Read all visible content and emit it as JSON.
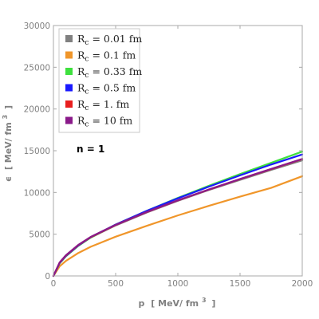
{
  "chart_data": {
    "type": "line",
    "xlabel_main": "p",
    "xlabel_unit": "[ MeV/ fm",
    "xlabel_exp": "3",
    "xlabel_close": "]",
    "ylabel_main": "ϵ",
    "ylabel_unit": "[ MeV/ fm",
    "ylabel_exp": "3",
    "ylabel_close": "]",
    "xlim": [
      0,
      2000
    ],
    "ylim": [
      0,
      30000
    ],
    "xticks": [
      0,
      500,
      1000,
      1500,
      2000
    ],
    "yticks": [
      0,
      5000,
      10000,
      15000,
      20000,
      25000,
      30000
    ],
    "grid": false,
    "legend_position": "top-left",
    "annotation": "n = 1",
    "series": [
      {
        "name": "R_c = 0.01 fm",
        "label_symbol": "R",
        "label_sub": "c",
        "label_rest": " = 0.01 fm",
        "color": "#808080",
        "x": [
          0,
          50,
          100,
          200,
          300,
          500,
          750,
          1000,
          1250,
          1500,
          1750,
          2000
        ],
        "y": [
          0,
          1550,
          2400,
          3650,
          4600,
          6050,
          7600,
          9000,
          10300,
          11500,
          12700,
          13850
        ]
      },
      {
        "name": "R_c = 0.1 fm",
        "label_symbol": "R",
        "label_sub": "c",
        "label_rest": " = 0.1 fm",
        "color": "#f0962a",
        "x": [
          0,
          50,
          100,
          200,
          300,
          500,
          750,
          1000,
          1250,
          1500,
          1750,
          2000
        ],
        "y": [
          0,
          1150,
          1800,
          2750,
          3500,
          4700,
          6000,
          7250,
          8400,
          9500,
          10550,
          11950
        ]
      },
      {
        "name": "R_c = 0.33 fm",
        "label_symbol": "R",
        "label_sub": "c",
        "label_rest": " = 0.33 fm",
        "color": "#3ee03e",
        "x": [
          0,
          50,
          100,
          200,
          300,
          500,
          750,
          1000,
          1250,
          1500,
          1750,
          2000
        ],
        "y": [
          0,
          1500,
          2350,
          3600,
          4600,
          6150,
          7800,
          9350,
          10800,
          12200,
          13550,
          14900
        ]
      },
      {
        "name": "R_c = 0.5 fm",
        "label_symbol": "R",
        "label_sub": "c",
        "label_rest": " = 0.5 fm",
        "color": "#1a1aff",
        "x": [
          0,
          50,
          100,
          200,
          300,
          500,
          750,
          1000,
          1250,
          1500,
          1750,
          2000
        ],
        "y": [
          0,
          1550,
          2400,
          3650,
          4650,
          6150,
          7800,
          9300,
          10700,
          12050,
          13350,
          14550
        ]
      },
      {
        "name": "R_c = 1. fm",
        "label_symbol": "R",
        "label_sub": "c",
        "label_rest": " = 1. fm",
        "color": "#e81e1e",
        "x": [
          0,
          50,
          100,
          200,
          300,
          500,
          750,
          1000,
          1250,
          1500,
          1750,
          2000
        ],
        "y": [
          0,
          1600,
          2450,
          3700,
          4650,
          6100,
          7650,
          9050,
          10350,
          11600,
          12800,
          14000
        ]
      },
      {
        "name": "R_c = 10 fm",
        "label_symbol": "R",
        "label_sub": "c",
        "label_rest": " = 10 fm",
        "color": "#8a1a8a",
        "x": [
          0,
          50,
          100,
          200,
          300,
          500,
          750,
          1000,
          1250,
          1500,
          1750,
          2000
        ],
        "y": [
          0,
          1620,
          2480,
          3720,
          4680,
          6120,
          7660,
          9060,
          10360,
          11610,
          12820,
          14020
        ]
      }
    ]
  }
}
